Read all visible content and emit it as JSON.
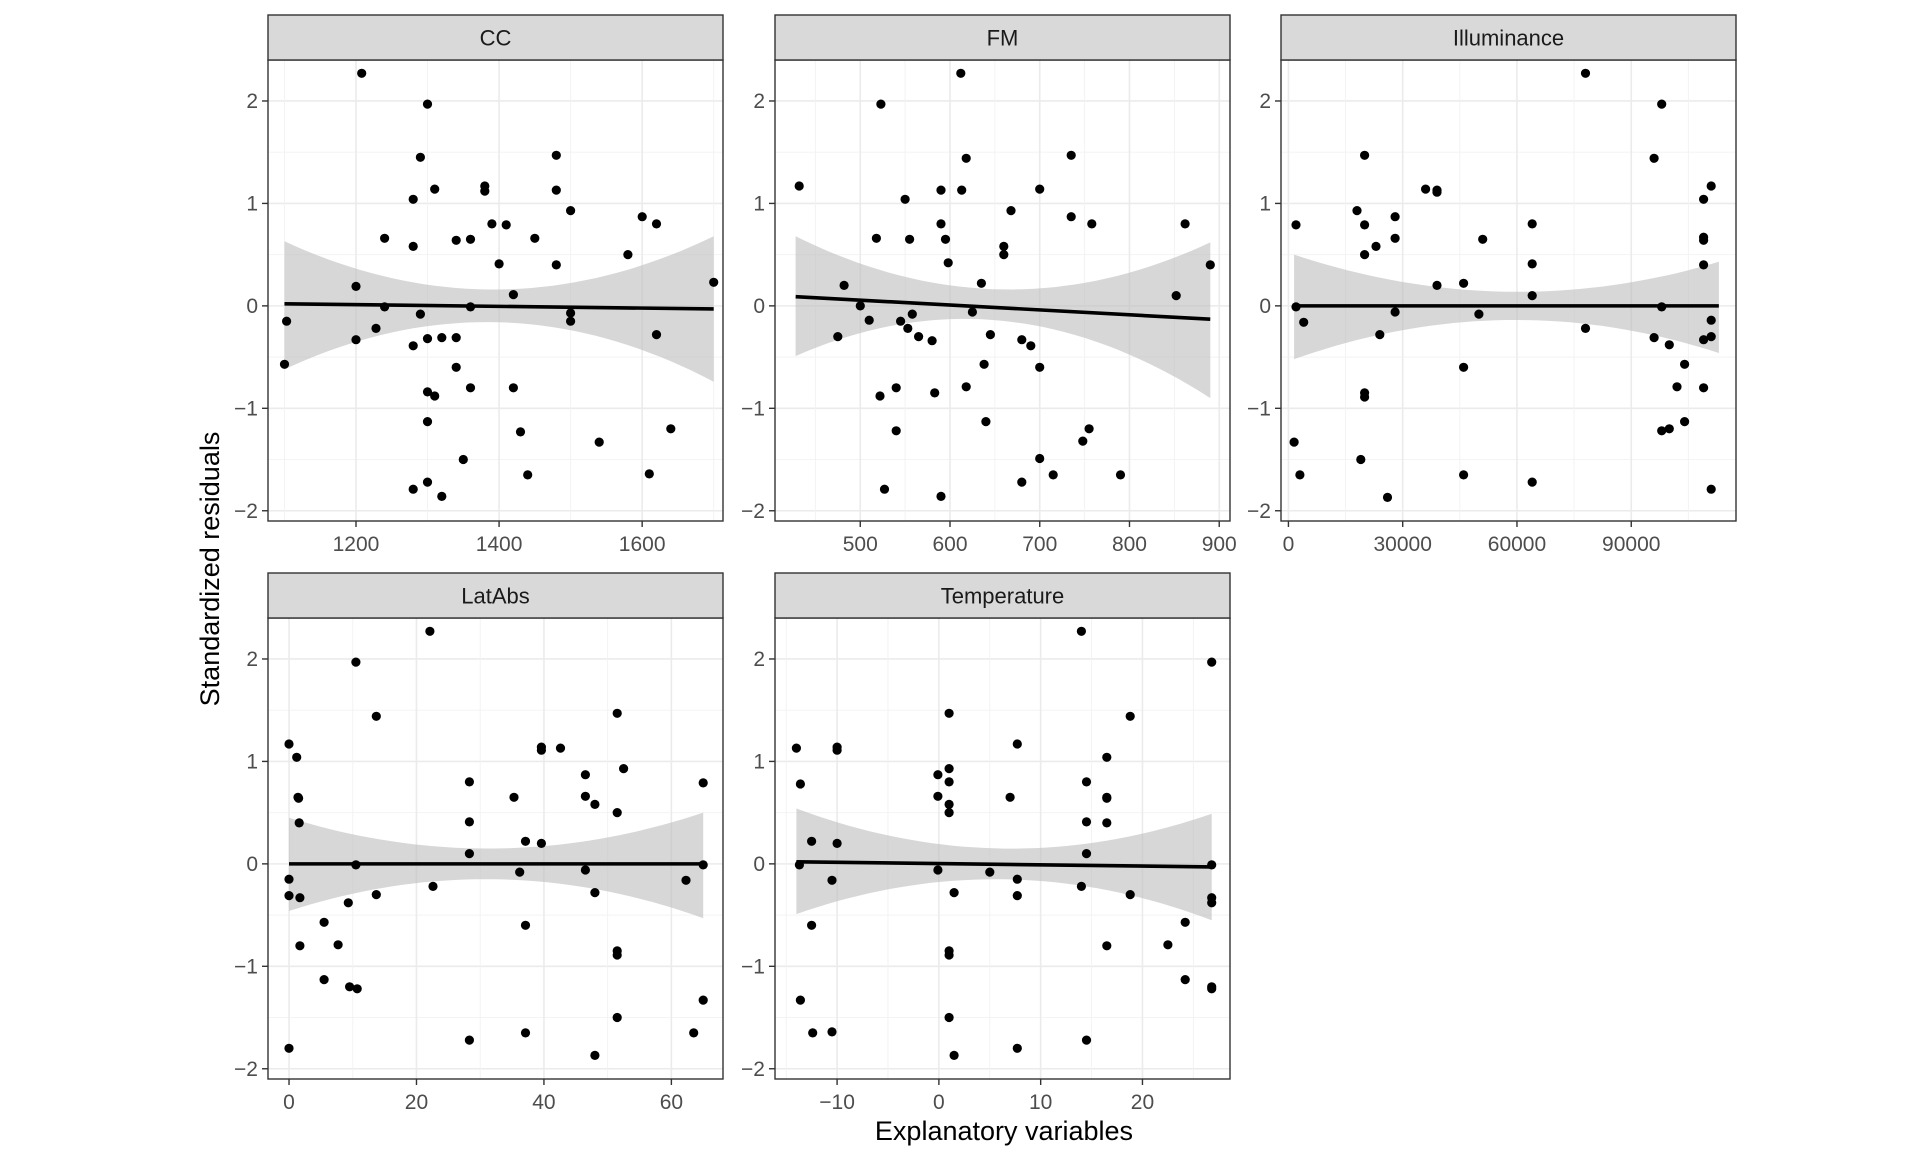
{
  "chart_data": {
    "type": "scatter",
    "xlabel": "Explanatory variables",
    "ylabel": "Standardized residuals",
    "ylim": [
      -2.1,
      2.4
    ],
    "yticks": [
      -2,
      -1,
      0,
      1,
      2
    ],
    "grid": true,
    "colors": {
      "point": "#000000",
      "fit_line": "#000000",
      "ribbon": "#bfbfbf",
      "strip_fill": "#d9d9d9",
      "panel_border": "#333333",
      "grid": "#ebebeb"
    },
    "panels": [
      {
        "name": "CC",
        "xlim": [
          1077,
          1713
        ],
        "xticks": [
          1200,
          1400,
          1600
        ],
        "fit": {
          "x": [
            1100,
            1700
          ],
          "y": [
            0.02,
            -0.03
          ]
        },
        "ribbon": {
          "x": [
            1100,
            1400,
            1700
          ],
          "lower": [
            -0.62,
            -0.16,
            -0.74
          ],
          "upper": [
            0.63,
            0.16,
            0.68
          ]
        },
        "points": [
          [
            1100,
            -0.57
          ],
          [
            1103,
            -0.15
          ],
          [
            1208,
            2.27
          ],
          [
            1300,
            1.97
          ],
          [
            1290,
            1.45
          ],
          [
            1280,
            1.04
          ],
          [
            1310,
            1.14
          ],
          [
            1280,
            0.58
          ],
          [
            1240,
            0.66
          ],
          [
            1228,
            -0.22
          ],
          [
            1200,
            0.19
          ],
          [
            1200,
            -0.33
          ],
          [
            1240,
            -0.01
          ],
          [
            1290,
            -0.08
          ],
          [
            1300,
            -0.32
          ],
          [
            1320,
            -0.31
          ],
          [
            1340,
            -0.31
          ],
          [
            1280,
            -0.39
          ],
          [
            1300,
            -0.84
          ],
          [
            1310,
            -0.88
          ],
          [
            1300,
            -1.13
          ],
          [
            1350,
            -1.5
          ],
          [
            1300,
            -1.72
          ],
          [
            1280,
            -1.79
          ],
          [
            1320,
            -1.86
          ],
          [
            1340,
            0.64
          ],
          [
            1360,
            0.65
          ],
          [
            1380,
            1.17
          ],
          [
            1380,
            1.12
          ],
          [
            1390,
            0.8
          ],
          [
            1410,
            0.79
          ],
          [
            1400,
            0.41
          ],
          [
            1420,
            0.11
          ],
          [
            1360,
            -0.01
          ],
          [
            1340,
            -0.6
          ],
          [
            1360,
            -0.8
          ],
          [
            1420,
            -0.8
          ],
          [
            1430,
            -1.23
          ],
          [
            1440,
            -1.65
          ],
          [
            1450,
            0.66
          ],
          [
            1480,
            1.47
          ],
          [
            1480,
            1.13
          ],
          [
            1500,
            0.93
          ],
          [
            1480,
            0.4
          ],
          [
            1500,
            -0.07
          ],
          [
            1500,
            -0.15
          ],
          [
            1540,
            -1.33
          ],
          [
            1580,
            0.5
          ],
          [
            1600,
            0.87
          ],
          [
            1620,
            0.8
          ],
          [
            1620,
            -0.28
          ],
          [
            1640,
            -1.2
          ],
          [
            1610,
            -1.64
          ],
          [
            1700,
            0.23
          ]
        ]
      },
      {
        "name": "FM",
        "xlim": [
          405,
          912
        ],
        "xticks": [
          500,
          600,
          700,
          800,
          900
        ],
        "fit": {
          "x": [
            428,
            890
          ],
          "y": [
            0.09,
            -0.13
          ]
        },
        "ribbon": {
          "x": [
            428,
            600,
            890
          ],
          "lower": [
            -0.49,
            -0.13,
            -0.9
          ],
          "upper": [
            0.68,
            0.2,
            0.62
          ]
        },
        "points": [
          [
            432,
            1.17
          ],
          [
            475,
            -0.3
          ],
          [
            482,
            0.2
          ],
          [
            500,
            0.0
          ],
          [
            510,
            -0.14
          ],
          [
            518,
            0.66
          ],
          [
            523,
            1.97
          ],
          [
            522,
            -0.88
          ],
          [
            527,
            -1.79
          ],
          [
            540,
            -0.8
          ],
          [
            540,
            -1.22
          ],
          [
            545,
            -0.15
          ],
          [
            550,
            1.04
          ],
          [
            553,
            -0.22
          ],
          [
            555,
            0.65
          ],
          [
            558,
            -0.08
          ],
          [
            565,
            -0.3
          ],
          [
            580,
            -0.34
          ],
          [
            583,
            -0.85
          ],
          [
            590,
            1.13
          ],
          [
            590,
            0.8
          ],
          [
            595,
            0.65
          ],
          [
            598,
            0.42
          ],
          [
            590,
            -1.86
          ],
          [
            612,
            2.27
          ],
          [
            613,
            1.13
          ],
          [
            618,
            1.44
          ],
          [
            618,
            -0.79
          ],
          [
            625,
            -0.06
          ],
          [
            635,
            0.22
          ],
          [
            638,
            -0.57
          ],
          [
            640,
            -1.13
          ],
          [
            645,
            -0.28
          ],
          [
            660,
            0.58
          ],
          [
            660,
            0.5
          ],
          [
            668,
            0.93
          ],
          [
            680,
            -0.33
          ],
          [
            680,
            -1.72
          ],
          [
            690,
            -0.39
          ],
          [
            700,
            1.14
          ],
          [
            700,
            -0.6
          ],
          [
            700,
            -1.49
          ],
          [
            715,
            -1.65
          ],
          [
            735,
            1.47
          ],
          [
            735,
            0.87
          ],
          [
            748,
            -1.32
          ],
          [
            758,
            0.8
          ],
          [
            755,
            -1.2
          ],
          [
            790,
            -1.65
          ],
          [
            852,
            0.1
          ],
          [
            862,
            0.8
          ],
          [
            890,
            0.4
          ]
        ]
      },
      {
        "name": "Illuminance",
        "xlim": [
          -1950,
          117500
        ],
        "xticks": [
          0,
          30000,
          60000,
          90000
        ],
        "fit": {
          "x": [
            1500,
            113000
          ],
          "y": [
            0.0,
            0.0
          ]
        },
        "ribbon": {
          "x": [
            1500,
            55000,
            113000
          ],
          "lower": [
            -0.52,
            -0.14,
            -0.46
          ],
          "upper": [
            0.5,
            0.14,
            0.43
          ]
        },
        "points": [
          [
            1500,
            -1.33
          ],
          [
            2000,
            0.79
          ],
          [
            2000,
            -0.01
          ],
          [
            3000,
            -1.65
          ],
          [
            4000,
            -0.16
          ],
          [
            18000,
            0.93
          ],
          [
            19000,
            -1.5
          ],
          [
            20000,
            1.47
          ],
          [
            20000,
            0.79
          ],
          [
            20000,
            0.5
          ],
          [
            20000,
            -0.85
          ],
          [
            20000,
            -0.89
          ],
          [
            23000,
            0.58
          ],
          [
            24000,
            -0.28
          ],
          [
            26000,
            -1.87
          ],
          [
            28000,
            0.87
          ],
          [
            28000,
            0.66
          ],
          [
            28000,
            -0.06
          ],
          [
            36000,
            1.14
          ],
          [
            39000,
            1.13
          ],
          [
            39000,
            1.11
          ],
          [
            39000,
            0.2
          ],
          [
            46000,
            0.22
          ],
          [
            46000,
            -0.6
          ],
          [
            46000,
            -1.65
          ],
          [
            51000,
            0.65
          ],
          [
            50000,
            -0.08
          ],
          [
            64000,
            0.8
          ],
          [
            64000,
            0.41
          ],
          [
            64000,
            0.1
          ],
          [
            64000,
            -1.72
          ],
          [
            78000,
            2.27
          ],
          [
            78000,
            -0.22
          ],
          [
            96000,
            1.44
          ],
          [
            96000,
            -0.31
          ],
          [
            98000,
            1.97
          ],
          [
            98000,
            -0.01
          ],
          [
            98000,
            -1.22
          ],
          [
            100000,
            -0.38
          ],
          [
            100000,
            -1.2
          ],
          [
            102000,
            -0.79
          ],
          [
            104000,
            -0.57
          ],
          [
            104000,
            -1.13
          ],
          [
            109000,
            1.04
          ],
          [
            109000,
            0.67
          ],
          [
            109000,
            0.64
          ],
          [
            109000,
            0.4
          ],
          [
            109000,
            -0.33
          ],
          [
            109000,
            -0.8
          ],
          [
            111000,
            1.17
          ],
          [
            111000,
            -0.14
          ],
          [
            111000,
            -0.3
          ],
          [
            111000,
            -1.79
          ]
        ]
      },
      {
        "name": "LatAbs",
        "xlim": [
          -3.3,
          68.1
        ],
        "xticks": [
          0,
          20,
          40,
          60
        ],
        "fit": {
          "x": [
            0,
            65
          ],
          "y": [
            0.0,
            0.0
          ]
        },
        "ribbon": {
          "x": [
            0,
            32,
            65
          ],
          "lower": [
            -0.46,
            -0.15,
            -0.53
          ],
          "upper": [
            0.45,
            0.15,
            0.5
          ]
        },
        "points": [
          [
            0,
            1.17
          ],
          [
            0,
            -0.15
          ],
          [
            0,
            -0.31
          ],
          [
            0,
            -1.8
          ],
          [
            1.2,
            1.04
          ],
          [
            1.4,
            0.65
          ],
          [
            1.5,
            0.64
          ],
          [
            1.6,
            0.4
          ],
          [
            1.7,
            -0.33
          ],
          [
            1.7,
            -0.8
          ],
          [
            5.5,
            -0.57
          ],
          [
            5.5,
            -1.13
          ],
          [
            7.7,
            -0.79
          ],
          [
            9.3,
            -0.38
          ],
          [
            9.5,
            -1.2
          ],
          [
            10.5,
            1.97
          ],
          [
            10.5,
            -0.01
          ],
          [
            10.7,
            -1.22
          ],
          [
            13.7,
            1.44
          ],
          [
            13.7,
            -0.3
          ],
          [
            22.1,
            2.27
          ],
          [
            22.6,
            -0.22
          ],
          [
            28.3,
            0.8
          ],
          [
            28.3,
            0.41
          ],
          [
            28.3,
            0.1
          ],
          [
            28.3,
            -1.72
          ],
          [
            35.3,
            0.65
          ],
          [
            36.2,
            -0.08
          ],
          [
            37.1,
            0.22
          ],
          [
            37.1,
            -0.6
          ],
          [
            37.1,
            -1.65
          ],
          [
            39.6,
            1.14
          ],
          [
            39.6,
            1.11
          ],
          [
            39.6,
            0.2
          ],
          [
            42.6,
            1.13
          ],
          [
            46.5,
            0.87
          ],
          [
            46.5,
            0.66
          ],
          [
            46.5,
            -0.06
          ],
          [
            48,
            0.58
          ],
          [
            48,
            -0.28
          ],
          [
            48,
            -1.87
          ],
          [
            51.5,
            1.47
          ],
          [
            51.5,
            0.5
          ],
          [
            51.5,
            -0.85
          ],
          [
            51.5,
            -0.89
          ],
          [
            51.5,
            -1.5
          ],
          [
            52.5,
            0.93
          ],
          [
            62.3,
            -0.16
          ],
          [
            63.5,
            -1.65
          ],
          [
            65,
            0.79
          ],
          [
            65,
            -0.01
          ],
          [
            65,
            -1.33
          ]
        ]
      },
      {
        "name": "Temperature",
        "xlim": [
          -16.1,
          28.6
        ],
        "xticks": [
          -10,
          0,
          10,
          20
        ],
        "fit": {
          "x": [
            -14,
            26.8
          ],
          "y": [
            0.02,
            -0.03
          ]
        },
        "ribbon": {
          "x": [
            -14,
            6,
            26.8
          ],
          "lower": [
            -0.49,
            -0.15,
            -0.55
          ],
          "upper": [
            0.54,
            0.15,
            0.49
          ]
        },
        "points": [
          [
            -14,
            1.13
          ],
          [
            -13.6,
            0.78
          ],
          [
            -13.7,
            -0.01
          ],
          [
            -13.6,
            -1.33
          ],
          [
            -12.5,
            0.22
          ],
          [
            -12.5,
            -0.6
          ],
          [
            -12.4,
            -1.65
          ],
          [
            -10.5,
            -0.16
          ],
          [
            -10.5,
            -1.64
          ],
          [
            -10,
            1.14
          ],
          [
            -10,
            1.11
          ],
          [
            -10,
            0.2
          ],
          [
            -0.1,
            0.87
          ],
          [
            -0.1,
            0.66
          ],
          [
            -0.1,
            -0.06
          ],
          [
            1,
            0.93
          ],
          [
            1,
            0.8
          ],
          [
            1,
            0.58
          ],
          [
            1,
            0.5
          ],
          [
            1,
            1.47
          ],
          [
            1,
            -0.85
          ],
          [
            1,
            -0.89
          ],
          [
            1,
            -1.5
          ],
          [
            1.5,
            -0.28
          ],
          [
            1.5,
            -1.87
          ],
          [
            5,
            -0.08
          ],
          [
            7,
            0.65
          ],
          [
            7.7,
            1.17
          ],
          [
            7.7,
            -0.15
          ],
          [
            7.7,
            -0.31
          ],
          [
            7.7,
            -1.8
          ],
          [
            14,
            2.27
          ],
          [
            14,
            -0.22
          ],
          [
            14.5,
            0.8
          ],
          [
            14.5,
            0.41
          ],
          [
            14.5,
            0.1
          ],
          [
            14.5,
            -1.72
          ],
          [
            16.5,
            1.04
          ],
          [
            16.5,
            0.65
          ],
          [
            16.5,
            0.64
          ],
          [
            16.5,
            0.4
          ],
          [
            16.5,
            -0.8
          ],
          [
            18.8,
            1.44
          ],
          [
            18.8,
            -0.3
          ],
          [
            22.5,
            -0.79
          ],
          [
            24.2,
            -0.57
          ],
          [
            24.2,
            -1.13
          ],
          [
            26.8,
            1.97
          ],
          [
            26.8,
            -0.01
          ],
          [
            26.8,
            -0.33
          ],
          [
            26.8,
            -0.38
          ],
          [
            26.8,
            -1.2
          ],
          [
            26.8,
            -1.22
          ]
        ]
      }
    ]
  }
}
